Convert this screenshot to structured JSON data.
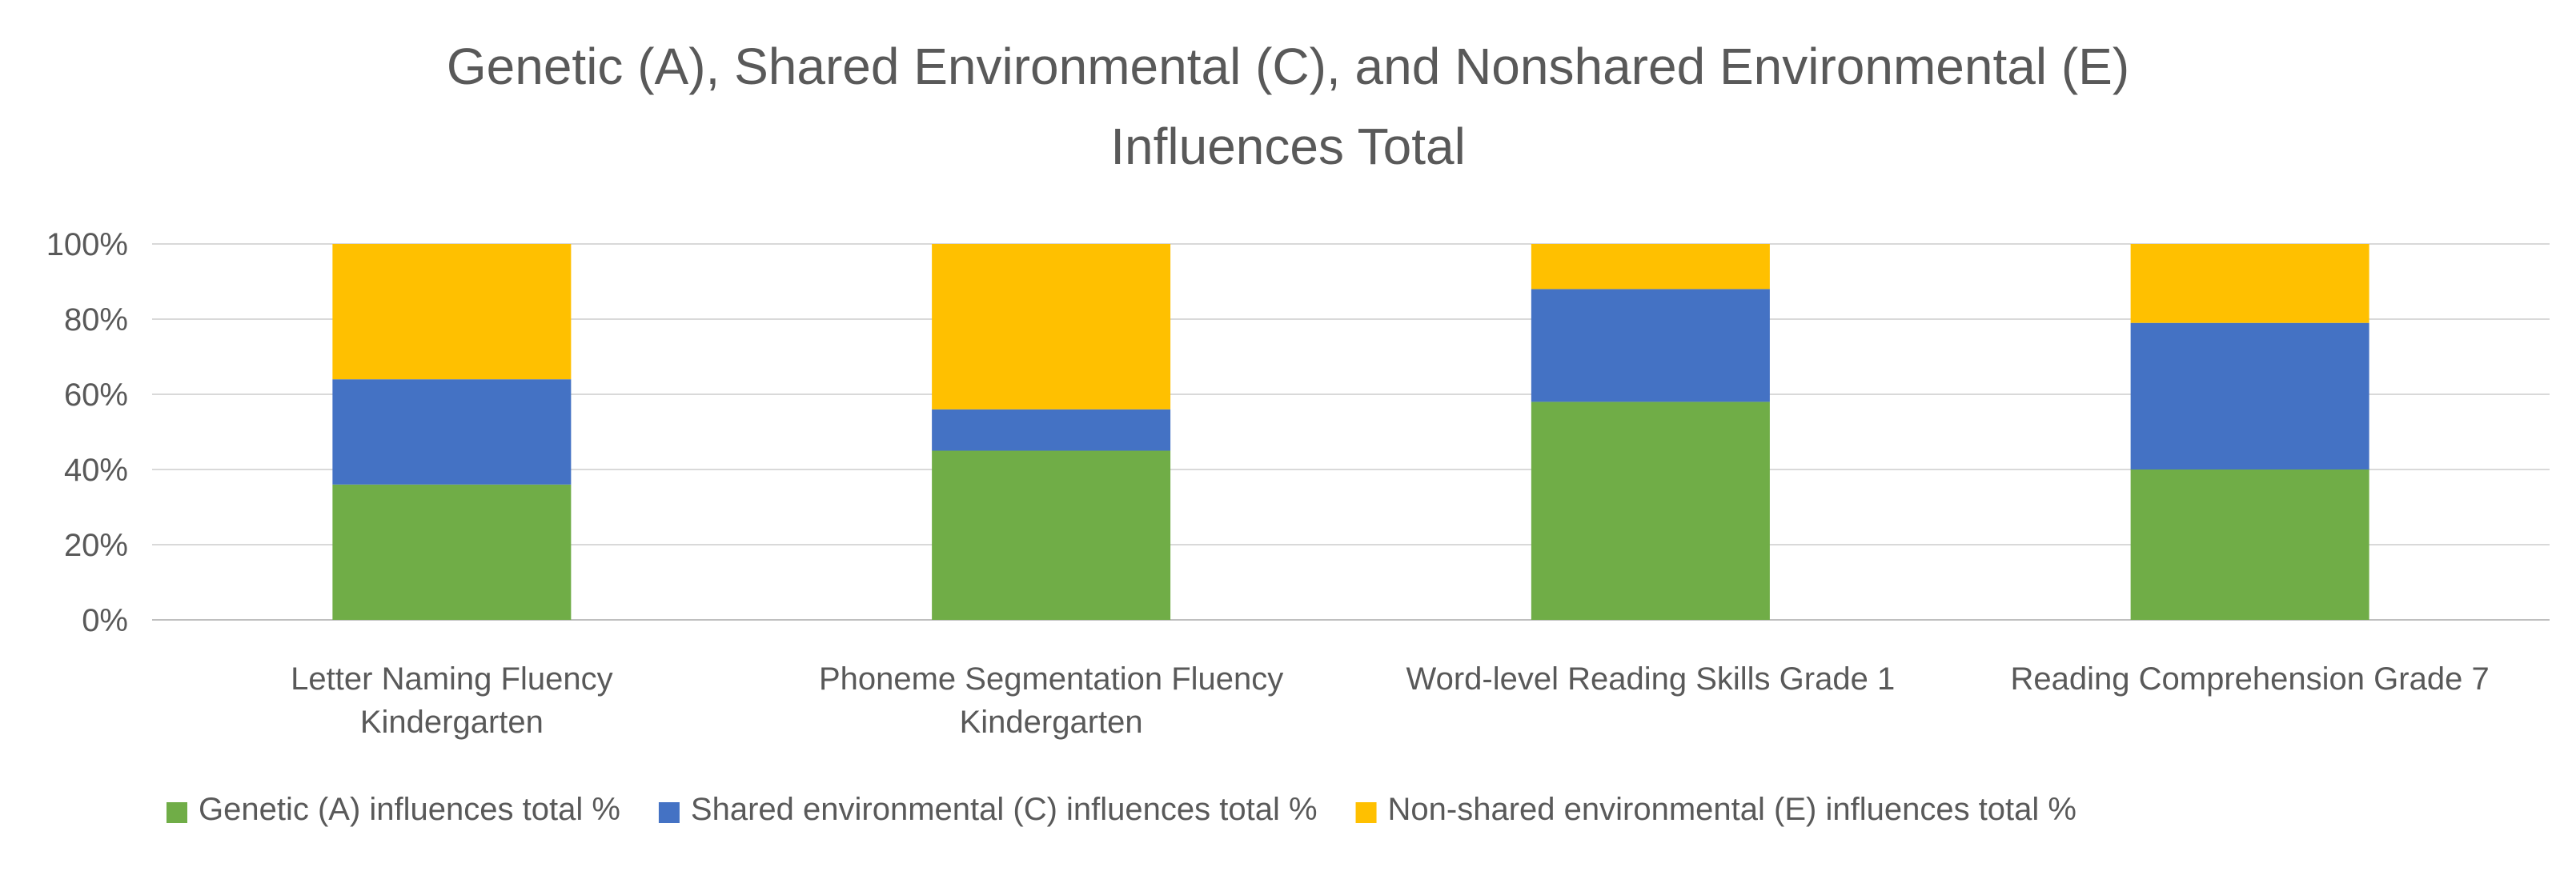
{
  "chart_data": {
    "type": "bar",
    "stacked": true,
    "title_lines": [
      "Genetic (A), Shared Environmental (C), and Nonshared Environmental (E)",
      "Influences Total"
    ],
    "categories": [
      [
        "Letter Naming Fluency",
        "Kindergarten"
      ],
      [
        "Phoneme Segmentation Fluency",
        "Kindergarten"
      ],
      [
        "Word-level Reading Skills Grade 1"
      ],
      [
        "Reading Comprehension Grade 7"
      ]
    ],
    "series": [
      {
        "name": "Genetic (A) influences total %",
        "color": "#70AD47",
        "values": [
          36,
          45,
          58,
          40
        ]
      },
      {
        "name": "Shared environmental (C) influences total %",
        "color": "#4472C4",
        "values": [
          28,
          11,
          30,
          39
        ]
      },
      {
        "name": "Non-shared environmental (E) influences total %",
        "color": "#FFC000",
        "values": [
          36,
          44,
          12,
          21
        ]
      }
    ],
    "y_ticks": [
      "0%",
      "20%",
      "40%",
      "60%",
      "80%",
      "100%"
    ],
    "ylim": [
      0,
      100
    ],
    "grid": true,
    "legend_position": "bottom"
  }
}
